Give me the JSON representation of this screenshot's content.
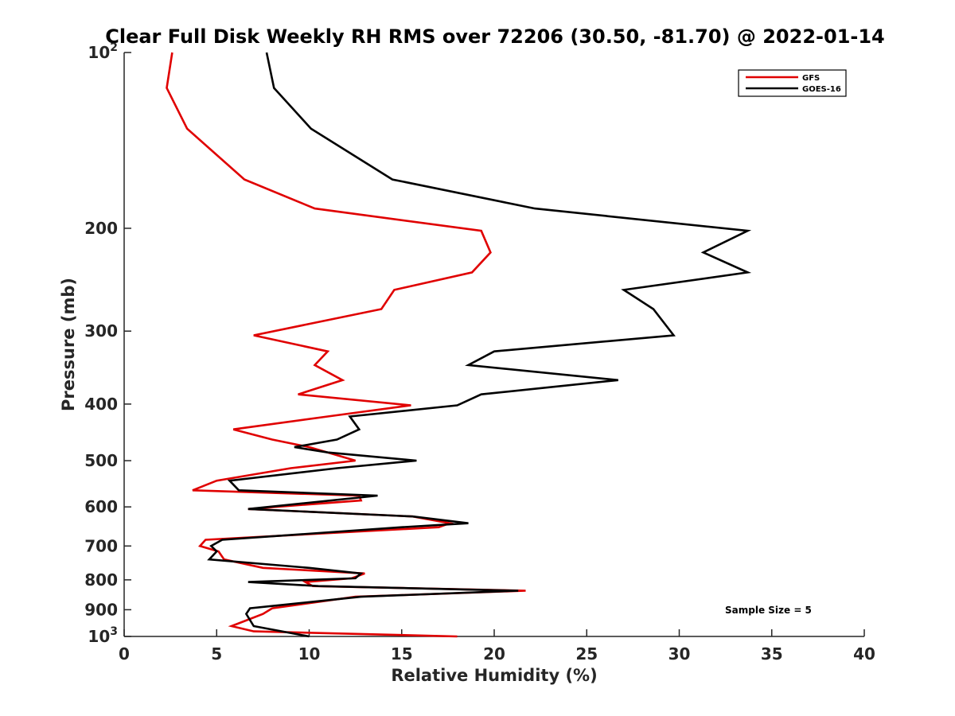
{
  "chart_data": {
    "type": "line",
    "title": "Clear Full Disk Weekly RH RMS over 72206 (30.50, -81.70) @ 2022-01-14",
    "xlabel": "Relative Humidity (%)",
    "ylabel": "Pressure (mb)",
    "xlim": [
      0,
      40
    ],
    "ylim": [
      100,
      1000
    ],
    "yscale": "log",
    "y_reversed": true,
    "x_ticks": [
      0,
      5,
      10,
      15,
      20,
      25,
      30,
      35,
      40
    ],
    "x_tick_labels": [
      "0",
      "5",
      "10",
      "15",
      "20",
      "25",
      "30",
      "35",
      "40"
    ],
    "y_ticks": [
      100,
      200,
      300,
      400,
      500,
      600,
      700,
      800,
      900,
      1000
    ],
    "y_tick_labels": [
      {
        "text": "10",
        "sup": "2"
      },
      {
        "text": "200",
        "sup": ""
      },
      {
        "text": "300",
        "sup": ""
      },
      {
        "text": "400",
        "sup": ""
      },
      {
        "text": "500",
        "sup": ""
      },
      {
        "text": "600",
        "sup": ""
      },
      {
        "text": "700",
        "sup": ""
      },
      {
        "text": "800",
        "sup": ""
      },
      {
        "text": "900",
        "sup": ""
      },
      {
        "text": "10",
        "sup": "3"
      }
    ],
    "grid": false,
    "legend_position": "top-right",
    "annotation": "Sample Size = 5",
    "series": [
      {
        "name": "GFS",
        "color": "#e00000",
        "points": [
          [
            2.6,
            100
          ],
          [
            2.3,
            115
          ],
          [
            3.4,
            135
          ],
          [
            6.5,
            165
          ],
          [
            10.3,
            185
          ],
          [
            19.3,
            202
          ],
          [
            19.8,
            220
          ],
          [
            18.8,
            238
          ],
          [
            14.6,
            255
          ],
          [
            13.9,
            275
          ],
          [
            7.0,
            305
          ],
          [
            11.0,
            325
          ],
          [
            10.3,
            343
          ],
          [
            11.8,
            364
          ],
          [
            9.4,
            385
          ],
          [
            15.5,
            402
          ],
          [
            11.0,
            420
          ],
          [
            5.9,
            442
          ],
          [
            8.0,
            460
          ],
          [
            10.0,
            474
          ],
          [
            11.0,
            484
          ],
          [
            12.5,
            500
          ],
          [
            9.0,
            515
          ],
          [
            5.0,
            541
          ],
          [
            3.7,
            562
          ],
          [
            12.7,
            574
          ],
          [
            12.8,
            585
          ],
          [
            6.7,
            605
          ],
          [
            15.6,
            623
          ],
          [
            17.6,
            640
          ],
          [
            17.0,
            650
          ],
          [
            4.4,
            683
          ],
          [
            4.1,
            700
          ],
          [
            5.1,
            715
          ],
          [
            5.4,
            738
          ],
          [
            7.5,
            763
          ],
          [
            13.0,
            780
          ],
          [
            12.3,
            795
          ],
          [
            9.8,
            807
          ],
          [
            10.2,
            820
          ],
          [
            21.7,
            835
          ],
          [
            12.5,
            855
          ],
          [
            8.0,
            895
          ],
          [
            7.5,
            915
          ],
          [
            5.8,
            960
          ],
          [
            7.0,
            980
          ],
          [
            18.0,
            1000
          ]
        ]
      },
      {
        "name": "GOES-16",
        "color": "#000000",
        "points": [
          [
            7.7,
            100
          ],
          [
            8.1,
            115
          ],
          [
            10.1,
            135
          ],
          [
            14.5,
            165
          ],
          [
            22.2,
            185
          ],
          [
            33.7,
            202
          ],
          [
            31.3,
            220
          ],
          [
            33.7,
            238
          ],
          [
            27.0,
            255
          ],
          [
            28.6,
            275
          ],
          [
            29.7,
            305
          ],
          [
            20.0,
            325
          ],
          [
            18.6,
            343
          ],
          [
            26.7,
            364
          ],
          [
            19.3,
            385
          ],
          [
            18.0,
            402
          ],
          [
            12.2,
            420
          ],
          [
            12.7,
            442
          ],
          [
            11.5,
            460
          ],
          [
            9.2,
            474
          ],
          [
            11.0,
            484
          ],
          [
            15.8,
            500
          ],
          [
            11.5,
            515
          ],
          [
            5.7,
            541
          ],
          [
            6.2,
            562
          ],
          [
            13.7,
            574
          ],
          [
            6.7,
            605
          ],
          [
            15.6,
            623
          ],
          [
            18.6,
            640
          ],
          [
            15.0,
            650
          ],
          [
            5.3,
            683
          ],
          [
            4.7,
            700
          ],
          [
            5.0,
            715
          ],
          [
            4.6,
            738
          ],
          [
            10.0,
            763
          ],
          [
            12.8,
            780
          ],
          [
            12.5,
            795
          ],
          [
            6.7,
            807
          ],
          [
            10.5,
            820
          ],
          [
            21.3,
            835
          ],
          [
            12.8,
            855
          ],
          [
            6.8,
            895
          ],
          [
            6.6,
            915
          ],
          [
            7.0,
            960
          ],
          [
            10.0,
            1000
          ]
        ]
      }
    ]
  }
}
